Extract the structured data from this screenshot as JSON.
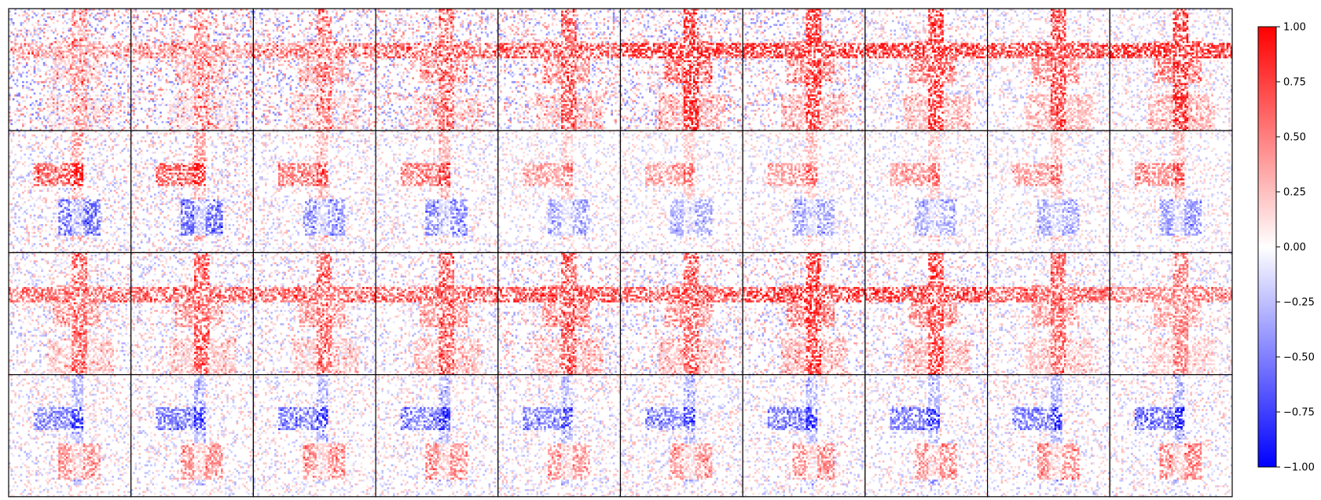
{
  "chart_data": {
    "type": "heatmap",
    "title": "",
    "layout": {
      "rows": 4,
      "columns": 10
    },
    "matrix_size": 64,
    "axes_ticks": "off",
    "value_range": [
      -1.0,
      1.0
    ],
    "colormap": {
      "name": "bwr",
      "low": "#0000ff",
      "mid": "#ffffff",
      "high": "#ff0000"
    },
    "colorbar": {
      "placement": "right",
      "ticks": [
        -1.0,
        -0.75,
        -0.5,
        -0.25,
        0.0,
        0.25,
        0.5,
        0.75,
        1.0
      ],
      "tick_labels": [
        "−1.00",
        "−0.75",
        "−0.50",
        "−0.25",
        "0.00",
        "0.25",
        "0.50",
        "0.75",
        "1.00"
      ]
    },
    "rows": [
      {
        "pattern": "cross",
        "sign": 1,
        "strength": [
          0.35,
          0.4,
          0.5,
          0.6,
          0.65,
          0.85,
          0.8,
          0.8,
          0.75,
          0.85
        ],
        "noise": [
          0.55,
          0.55,
          0.5,
          0.5,
          0.5,
          0.5,
          0.45,
          0.35,
          0.3,
          0.3
        ]
      },
      {
        "pattern": "block",
        "sign": 1,
        "strength": [
          0.7,
          0.7,
          0.55,
          0.55,
          0.4,
          0.4,
          0.45,
          0.4,
          0.4,
          0.5
        ],
        "noise": [
          0.35,
          0.35,
          0.3,
          0.3,
          0.25,
          0.25,
          0.25,
          0.25,
          0.25,
          0.25
        ]
      },
      {
        "pattern": "cross",
        "sign": 1,
        "strength": [
          0.6,
          0.65,
          0.6,
          0.65,
          0.7,
          0.65,
          0.8,
          0.75,
          0.6,
          0.5
        ],
        "noise": [
          0.35,
          0.35,
          0.35,
          0.35,
          0.4,
          0.4,
          0.4,
          0.35,
          0.3,
          0.3
        ]
      },
      {
        "pattern": "block",
        "sign": -1,
        "strength": [
          0.55,
          0.55,
          0.55,
          0.55,
          0.5,
          0.5,
          0.55,
          0.55,
          0.55,
          0.6
        ],
        "noise": [
          0.3,
          0.3,
          0.3,
          0.3,
          0.3,
          0.3,
          0.3,
          0.3,
          0.3,
          0.3
        ]
      }
    ]
  }
}
